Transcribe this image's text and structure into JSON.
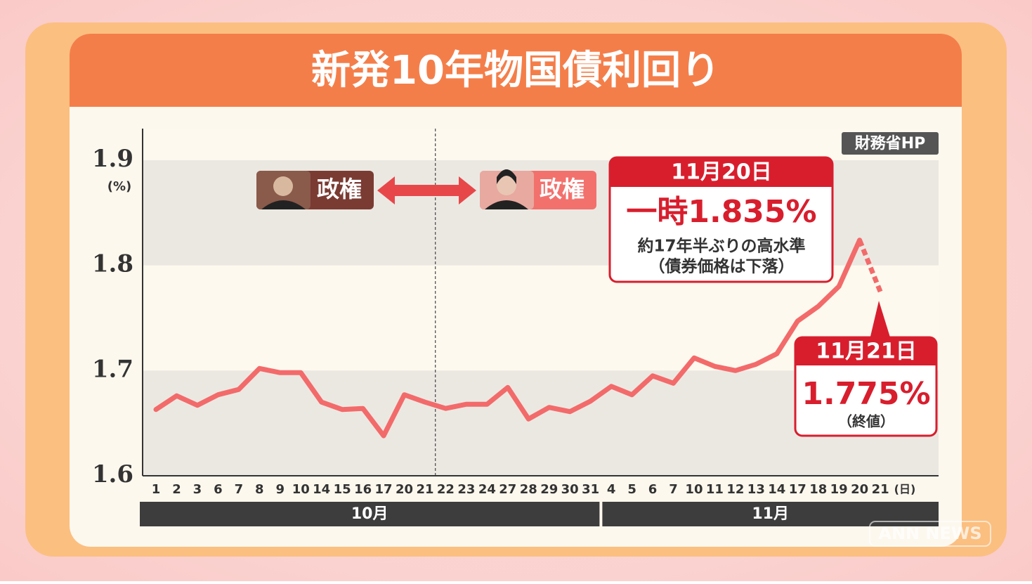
{
  "chart_data": {
    "type": "line",
    "title": "新発10年物国債利回り",
    "source": "財務省HP",
    "y_unit": "(%)",
    "x_unit": "(日)",
    "categories": [
      "1",
      "2",
      "3",
      "6",
      "7",
      "8",
      "9",
      "10",
      "14",
      "15",
      "16",
      "17",
      "20",
      "21",
      "22",
      "23",
      "24",
      "27",
      "28",
      "29",
      "30",
      "31",
      "4",
      "5",
      "6",
      "7",
      "10",
      "11",
      "12",
      "13",
      "14",
      "17",
      "18",
      "19",
      "20",
      "21"
    ],
    "months": [
      {
        "label": "10月",
        "categories": 22
      },
      {
        "label": "11月",
        "categories": 14
      }
    ],
    "series": [
      {
        "color": "#f36a6a",
        "style": "solid",
        "values": [
          1.663,
          1.676,
          1.667,
          1.677,
          1.682,
          1.702,
          1.698,
          1.698,
          1.67,
          1.663,
          1.664,
          1.638,
          1.677,
          1.67,
          1.664,
          1.668,
          1.668,
          1.684,
          1.654,
          1.665,
          1.661,
          1.671,
          1.685,
          1.677,
          1.695,
          1.688,
          1.712,
          1.704,
          1.7,
          1.706,
          1.716,
          1.747,
          1.761,
          1.78,
          1.824,
          null
        ]
      },
      {
        "color": "#f36a6a",
        "style": "dashed",
        "values": [
          null,
          null,
          null,
          null,
          null,
          null,
          null,
          null,
          null,
          null,
          null,
          null,
          null,
          null,
          null,
          null,
          null,
          null,
          null,
          null,
          null,
          null,
          null,
          null,
          null,
          null,
          null,
          null,
          null,
          null,
          null,
          null,
          null,
          null,
          1.824,
          1.775
        ]
      }
    ],
    "ylim": [
      1.6,
      1.93
    ],
    "yticks": [
      1.6,
      1.7,
      1.8,
      1.9
    ],
    "grid": "bands",
    "divider_after_category": 13,
    "regimes": [
      {
        "label": "政権"
      },
      {
        "label": "政権"
      }
    ],
    "callouts": [
      {
        "date": "11月20日",
        "headline": "一時1.835%",
        "value": 1.835,
        "lines": [
          "約17年半ぶりの高水準",
          "（債券価格は下落）"
        ]
      },
      {
        "date": "11月21日",
        "headline": "1.775%",
        "value": 1.775,
        "lines": [
          "（終値）"
        ]
      }
    ],
    "watermark": "ANN NEWS"
  }
}
